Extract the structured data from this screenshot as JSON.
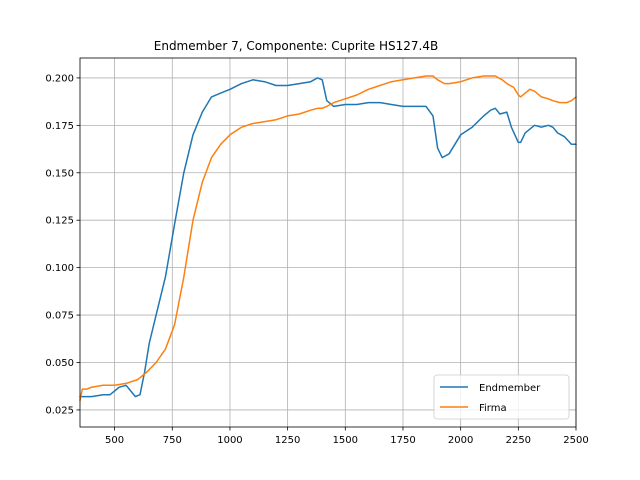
{
  "chart_data": {
    "type": "line",
    "title": "Endmember 7, Componente: Cuprite HS127.4B",
    "xlabel": "",
    "ylabel": "",
    "xlim": [
      350,
      2500
    ],
    "ylim": [
      0.016,
      0.2105
    ],
    "xticks": [
      500,
      750,
      1000,
      1250,
      1500,
      1750,
      2000,
      2250,
      2500
    ],
    "xtick_labels": [
      "500",
      "750",
      "1000",
      "1250",
      "1500",
      "1750",
      "2000",
      "2250",
      "2500"
    ],
    "yticks": [
      0.025,
      0.05,
      0.075,
      0.1,
      0.125,
      0.15,
      0.175,
      0.2
    ],
    "ytick_labels": [
      "0.025",
      "0.050",
      "0.075",
      "0.100",
      "0.125",
      "0.150",
      "0.175",
      "0.200"
    ],
    "grid": true,
    "legend_position": "lower right",
    "series": [
      {
        "name": "Endmember",
        "color": "#1f77b4",
        "x": [
          350,
          400,
          450,
          480,
          500,
          520,
          550,
          570,
          590,
          610,
          630,
          650,
          680,
          720,
          760,
          800,
          840,
          880,
          920,
          960,
          1000,
          1050,
          1100,
          1150,
          1200,
          1250,
          1300,
          1350,
          1380,
          1400,
          1420,
          1450,
          1500,
          1550,
          1600,
          1650,
          1700,
          1750,
          1800,
          1850,
          1880,
          1900,
          1920,
          1950,
          2000,
          2050,
          2100,
          2130,
          2150,
          2170,
          2200,
          2220,
          2250,
          2260,
          2280,
          2300,
          2320,
          2350,
          2380,
          2400,
          2420,
          2450,
          2480,
          2500
        ],
        "y": [
          0.032,
          0.032,
          0.033,
          0.033,
          0.035,
          0.037,
          0.038,
          0.035,
          0.032,
          0.033,
          0.045,
          0.06,
          0.075,
          0.095,
          0.123,
          0.15,
          0.17,
          0.182,
          0.19,
          0.192,
          0.194,
          0.197,
          0.199,
          0.198,
          0.196,
          0.196,
          0.197,
          0.198,
          0.2,
          0.199,
          0.188,
          0.185,
          0.186,
          0.186,
          0.187,
          0.187,
          0.186,
          0.185,
          0.185,
          0.185,
          0.18,
          0.163,
          0.158,
          0.16,
          0.17,
          0.174,
          0.18,
          0.183,
          0.184,
          0.181,
          0.182,
          0.174,
          0.166,
          0.166,
          0.171,
          0.173,
          0.175,
          0.174,
          0.175,
          0.174,
          0.171,
          0.169,
          0.165,
          0.165
        ]
      },
      {
        "name": "Firma",
        "color": "#ff7f0e",
        "x": [
          350,
          360,
          380,
          400,
          450,
          500,
          550,
          600,
          640,
          680,
          720,
          760,
          800,
          840,
          880,
          920,
          960,
          1000,
          1050,
          1100,
          1150,
          1200,
          1250,
          1300,
          1350,
          1380,
          1400,
          1420,
          1450,
          1500,
          1550,
          1600,
          1650,
          1700,
          1750,
          1800,
          1850,
          1880,
          1900,
          1930,
          1950,
          2000,
          2050,
          2100,
          2150,
          2180,
          2200,
          2230,
          2250,
          2260,
          2280,
          2300,
          2320,
          2350,
          2380,
          2400,
          2430,
          2460,
          2480,
          2500
        ],
        "y": [
          0.03,
          0.036,
          0.036,
          0.037,
          0.038,
          0.038,
          0.039,
          0.041,
          0.045,
          0.05,
          0.057,
          0.07,
          0.095,
          0.125,
          0.145,
          0.158,
          0.165,
          0.17,
          0.174,
          0.176,
          0.177,
          0.178,
          0.18,
          0.181,
          0.183,
          0.184,
          0.184,
          0.185,
          0.187,
          0.189,
          0.191,
          0.194,
          0.196,
          0.198,
          0.199,
          0.2,
          0.201,
          0.201,
          0.199,
          0.197,
          0.197,
          0.198,
          0.2,
          0.201,
          0.201,
          0.199,
          0.197,
          0.195,
          0.191,
          0.19,
          0.192,
          0.194,
          0.193,
          0.19,
          0.189,
          0.188,
          0.187,
          0.187,
          0.188,
          0.19
        ]
      }
    ]
  }
}
